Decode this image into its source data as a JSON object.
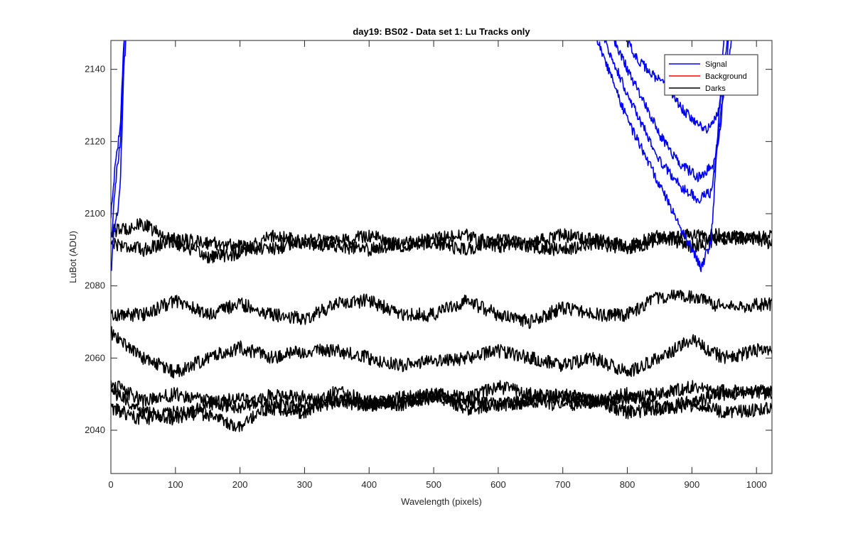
{
  "chart_data": {
    "type": "line",
    "title": "day19: BS02 - Data set 1: Lu Tracks only",
    "xlabel": "Wavelength (pixels)",
    "ylabel": "LuBot (ADU)",
    "xlim": [
      0,
      1024
    ],
    "ylim": [
      2028,
      2148
    ],
    "xticks": [
      0,
      100,
      200,
      300,
      400,
      500,
      600,
      700,
      800,
      900,
      1000
    ],
    "yticks": [
      2040,
      2060,
      2080,
      2100,
      2120,
      2140
    ],
    "grid": false,
    "legend_position": "top-right",
    "legend": [
      {
        "name": "Signal",
        "color": "#0000ff"
      },
      {
        "name": "Background",
        "color": "#ff0000"
      },
      {
        "name": "Darks",
        "color": "#000000"
      }
    ],
    "series": [
      {
        "group": "Darks",
        "color": "#000000",
        "x": [
          0,
          50,
          100,
          150,
          200,
          250,
          300,
          350,
          400,
          450,
          500,
          550,
          600,
          650,
          700,
          750,
          800,
          850,
          900,
          950,
          1024
        ],
        "y": [
          2095,
          2097,
          2092,
          2088,
          2089,
          2094,
          2092,
          2091,
          2090,
          2092,
          2093,
          2094,
          2091,
          2092,
          2094,
          2093,
          2091,
          2094,
          2091,
          2093,
          2094
        ]
      },
      {
        "group": "Darks",
        "color": "#000000",
        "x": [
          0,
          50,
          100,
          150,
          200,
          250,
          300,
          350,
          400,
          450,
          500,
          550,
          600,
          650,
          700,
          750,
          800,
          850,
          900,
          950,
          1024
        ],
        "y": [
          2092,
          2090,
          2093,
          2092,
          2091,
          2090,
          2093,
          2092,
          2094,
          2091,
          2092,
          2090,
          2093,
          2091,
          2090,
          2092,
          2090,
          2093,
          2094,
          2094,
          2092
        ]
      },
      {
        "group": "Darks",
        "color": "#000000",
        "x": [
          0,
          50,
          100,
          150,
          200,
          250,
          300,
          350,
          400,
          450,
          500,
          550,
          600,
          650,
          700,
          750,
          800,
          850,
          900,
          950,
          1024
        ],
        "y": [
          2072,
          2072,
          2076,
          2072,
          2075,
          2072,
          2071,
          2075,
          2076,
          2072,
          2072,
          2076,
          2072,
          2070,
          2074,
          2072,
          2072,
          2077,
          2077,
          2074,
          2075
        ]
      },
      {
        "group": "Darks",
        "color": "#000000",
        "x": [
          0,
          50,
          100,
          150,
          200,
          250,
          300,
          350,
          400,
          450,
          500,
          550,
          600,
          650,
          700,
          750,
          800,
          850,
          900,
          950,
          1024
        ],
        "y": [
          2067,
          2060,
          2056,
          2060,
          2063,
          2060,
          2062,
          2062,
          2060,
          2058,
          2059,
          2060,
          2062,
          2060,
          2058,
          2060,
          2056,
          2060,
          2065,
          2060,
          2063
        ]
      },
      {
        "group": "Darks",
        "color": "#000000",
        "x": [
          0,
          50,
          100,
          150,
          200,
          250,
          300,
          350,
          400,
          450,
          500,
          550,
          600,
          650,
          700,
          750,
          800,
          850,
          900,
          950,
          1024
        ],
        "y": [
          2053,
          2048,
          2050,
          2048,
          2046,
          2050,
          2049,
          2048,
          2047,
          2049,
          2050,
          2049,
          2052,
          2050,
          2049,
          2048,
          2049,
          2050,
          2052,
          2050,
          2051
        ]
      },
      {
        "group": "Darks",
        "color": "#000000",
        "x": [
          0,
          50,
          100,
          150,
          200,
          250,
          300,
          350,
          400,
          450,
          500,
          550,
          600,
          650,
          700,
          750,
          800,
          850,
          900,
          950,
          1024
        ],
        "y": [
          2051,
          2045,
          2043,
          2047,
          2049,
          2046,
          2045,
          2051,
          2048,
          2047,
          2050,
          2046,
          2047,
          2048,
          2050,
          2048,
          2050,
          2046,
          2047,
          2051,
          2050
        ]
      },
      {
        "group": "Darks",
        "color": "#000000",
        "x": [
          0,
          50,
          100,
          150,
          200,
          250,
          300,
          350,
          400,
          450,
          500,
          550,
          600,
          650,
          700,
          750,
          800,
          850,
          900,
          950,
          1024
        ],
        "y": [
          2046,
          2043,
          2045,
          2044,
          2041,
          2047,
          2046,
          2048,
          2047,
          2048,
          2049,
          2048,
          2047,
          2048,
          2047,
          2048,
          2045,
          2046,
          2048,
          2045,
          2046
        ]
      },
      {
        "group": "Signal",
        "color": "#0000ff",
        "x": [
          0,
          5,
          10,
          15,
          20,
          25
        ],
        "y": [
          2083,
          2095,
          2100,
          2110,
          2140,
          2152
        ]
      },
      {
        "group": "Signal",
        "color": "#0000ff",
        "x": [
          0,
          5,
          10,
          15,
          20,
          25
        ],
        "y": [
          2092,
          2103,
          2114,
          2120,
          2145,
          2155
        ]
      },
      {
        "group": "Signal",
        "color": "#0000ff",
        "x": [
          0,
          5,
          10,
          15,
          20,
          25
        ],
        "y": [
          2100,
          2110,
          2118,
          2125,
          2148,
          2158
        ]
      },
      {
        "group": "Signal",
        "color": "#0000ff",
        "x": [
          750,
          800,
          850,
          880,
          900,
          915,
          930,
          950
        ],
        "y": [
          2150,
          2126,
          2108,
          2097,
          2090,
          2085,
          2093,
          2150
        ]
      },
      {
        "group": "Signal",
        "color": "#0000ff",
        "x": [
          760,
          800,
          850,
          880,
          910,
          930,
          945,
          955
        ],
        "y": [
          2150,
          2133,
          2115,
          2108,
          2104,
          2106,
          2125,
          2150
        ]
      },
      {
        "group": "Signal",
        "color": "#0000ff",
        "x": [
          775,
          800,
          850,
          880,
          910,
          935,
          948,
          958
        ],
        "y": [
          2150,
          2140,
          2122,
          2114,
          2110,
          2114,
          2132,
          2150
        ]
      },
      {
        "group": "Signal",
        "color": "#0000ff",
        "x": [
          790,
          820,
          860,
          890,
          920,
          940,
          955,
          962
        ],
        "y": [
          2150,
          2142,
          2135,
          2128,
          2123,
          2128,
          2140,
          2150
        ]
      }
    ]
  }
}
